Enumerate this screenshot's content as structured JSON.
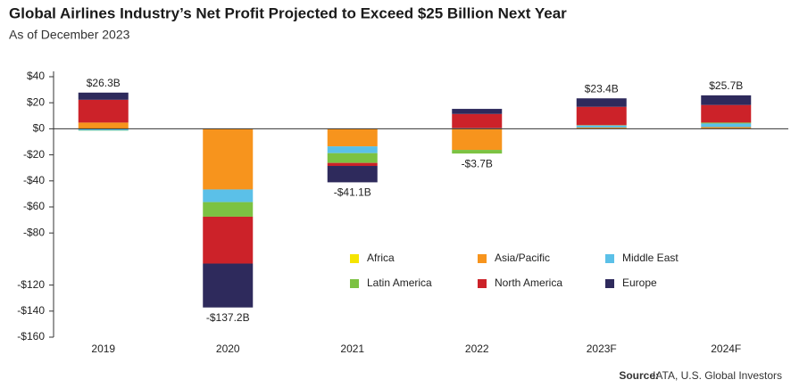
{
  "chart_data": {
    "type": "stacked_bar",
    "title": "Global Airlines Industry’s Net Profit Projected to Exceed $25 Billion Next Year",
    "subtitle": "As of December 2023",
    "source_label": "Source:",
    "source": "IATA, U.S. Global Investors",
    "categories": [
      "2019",
      "2020",
      "2021",
      "2022",
      "2023F",
      "2024F"
    ],
    "series": [
      {
        "name": "Africa",
        "color": "#f5e400",
        "values": [
          -0.3,
          -0.1,
          0,
          -0.2,
          0.1,
          0.1
        ]
      },
      {
        "name": "Asia/Pacific",
        "color": "#f7941d",
        "values": [
          4.8,
          -46.5,
          -13.5,
          -16,
          0.9,
          1.2
        ]
      },
      {
        "name": "Middle East",
        "color": "#5bc0e8",
        "values": [
          -1.0,
          -9.7,
          -5.2,
          0.5,
          1.5,
          2.8
        ]
      },
      {
        "name": "Latin America",
        "color": "#7cc242",
        "values": [
          -0.2,
          -11.2,
          -7.5,
          -2.8,
          0.3,
          0.7
        ]
      },
      {
        "name": "North America",
        "color": "#cc2229",
        "values": [
          17.5,
          -36,
          -2.3,
          10.9,
          14.1,
          13.5
        ]
      },
      {
        "name": "Europe",
        "color": "#2e2a5c",
        "values": [
          5.5,
          -33.7,
          -12.6,
          3.9,
          6.5,
          7.4
        ]
      }
    ],
    "totals": {
      "values": [
        26.3,
        -137.2,
        -41.1,
        -3.7,
        23.4,
        25.7
      ],
      "value_labels": [
        "$26.3B",
        "-$137.2B",
        "-$41.1B",
        "-$3.7B",
        "$23.4B",
        "$25.7B"
      ]
    },
    "ylim": [
      -160,
      40
    ],
    "yticks": [
      {
        "value": 40,
        "label": "$40"
      },
      {
        "value": 20,
        "label": "$20"
      },
      {
        "value": 0,
        "label": "$0"
      },
      {
        "value": -20,
        "label": "-$20"
      },
      {
        "value": -40,
        "label": "-$40"
      },
      {
        "value": -60,
        "label": "-$60"
      },
      {
        "value": -80,
        "label": "-$80"
      },
      {
        "value": -120,
        "label": "-$120"
      },
      {
        "value": -140,
        "label": "-$140"
      },
      {
        "value": -160,
        "label": "-$160"
      }
    ],
    "grid": false
  }
}
